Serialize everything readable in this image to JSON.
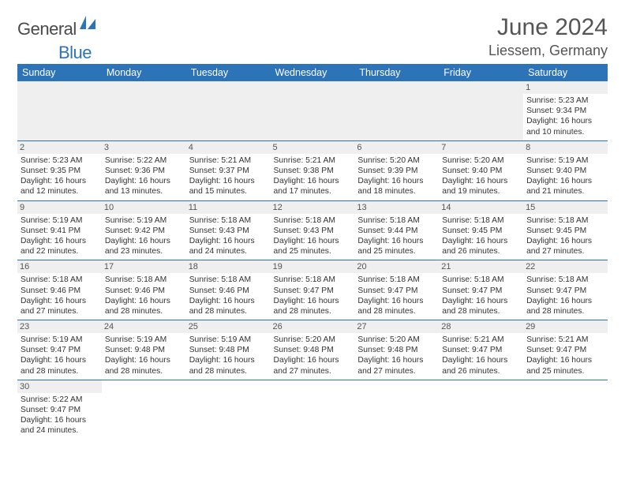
{
  "logo": {
    "part1": "General",
    "part2": "Blue",
    "shape_color": "#2d73b8"
  },
  "title": "June 2024",
  "location": "Liessem, Germany",
  "colors": {
    "header_bg": "#2d73b8",
    "header_fg": "#ffffff",
    "daynum_bg": "#efefef",
    "rule": "#2d73b8",
    "text": "#333333"
  },
  "weekdays": [
    "Sunday",
    "Monday",
    "Tuesday",
    "Wednesday",
    "Thursday",
    "Friday",
    "Saturday"
  ],
  "weeks": [
    [
      null,
      null,
      null,
      null,
      null,
      null,
      {
        "n": "1",
        "sr": "5:23 AM",
        "ss": "9:34 PM",
        "dl": "16 hours and 10 minutes."
      }
    ],
    [
      {
        "n": "2",
        "sr": "5:23 AM",
        "ss": "9:35 PM",
        "dl": "16 hours and 12 minutes."
      },
      {
        "n": "3",
        "sr": "5:22 AM",
        "ss": "9:36 PM",
        "dl": "16 hours and 13 minutes."
      },
      {
        "n": "4",
        "sr": "5:21 AM",
        "ss": "9:37 PM",
        "dl": "16 hours and 15 minutes."
      },
      {
        "n": "5",
        "sr": "5:21 AM",
        "ss": "9:38 PM",
        "dl": "16 hours and 17 minutes."
      },
      {
        "n": "6",
        "sr": "5:20 AM",
        "ss": "9:39 PM",
        "dl": "16 hours and 18 minutes."
      },
      {
        "n": "7",
        "sr": "5:20 AM",
        "ss": "9:40 PM",
        "dl": "16 hours and 19 minutes."
      },
      {
        "n": "8",
        "sr": "5:19 AM",
        "ss": "9:40 PM",
        "dl": "16 hours and 21 minutes."
      }
    ],
    [
      {
        "n": "9",
        "sr": "5:19 AM",
        "ss": "9:41 PM",
        "dl": "16 hours and 22 minutes."
      },
      {
        "n": "10",
        "sr": "5:19 AM",
        "ss": "9:42 PM",
        "dl": "16 hours and 23 minutes."
      },
      {
        "n": "11",
        "sr": "5:18 AM",
        "ss": "9:43 PM",
        "dl": "16 hours and 24 minutes."
      },
      {
        "n": "12",
        "sr": "5:18 AM",
        "ss": "9:43 PM",
        "dl": "16 hours and 25 minutes."
      },
      {
        "n": "13",
        "sr": "5:18 AM",
        "ss": "9:44 PM",
        "dl": "16 hours and 25 minutes."
      },
      {
        "n": "14",
        "sr": "5:18 AM",
        "ss": "9:45 PM",
        "dl": "16 hours and 26 minutes."
      },
      {
        "n": "15",
        "sr": "5:18 AM",
        "ss": "9:45 PM",
        "dl": "16 hours and 27 minutes."
      }
    ],
    [
      {
        "n": "16",
        "sr": "5:18 AM",
        "ss": "9:46 PM",
        "dl": "16 hours and 27 minutes."
      },
      {
        "n": "17",
        "sr": "5:18 AM",
        "ss": "9:46 PM",
        "dl": "16 hours and 28 minutes."
      },
      {
        "n": "18",
        "sr": "5:18 AM",
        "ss": "9:46 PM",
        "dl": "16 hours and 28 minutes."
      },
      {
        "n": "19",
        "sr": "5:18 AM",
        "ss": "9:47 PM",
        "dl": "16 hours and 28 minutes."
      },
      {
        "n": "20",
        "sr": "5:18 AM",
        "ss": "9:47 PM",
        "dl": "16 hours and 28 minutes."
      },
      {
        "n": "21",
        "sr": "5:18 AM",
        "ss": "9:47 PM",
        "dl": "16 hours and 28 minutes."
      },
      {
        "n": "22",
        "sr": "5:18 AM",
        "ss": "9:47 PM",
        "dl": "16 hours and 28 minutes."
      }
    ],
    [
      {
        "n": "23",
        "sr": "5:19 AM",
        "ss": "9:47 PM",
        "dl": "16 hours and 28 minutes."
      },
      {
        "n": "24",
        "sr": "5:19 AM",
        "ss": "9:48 PM",
        "dl": "16 hours and 28 minutes."
      },
      {
        "n": "25",
        "sr": "5:19 AM",
        "ss": "9:48 PM",
        "dl": "16 hours and 28 minutes."
      },
      {
        "n": "26",
        "sr": "5:20 AM",
        "ss": "9:48 PM",
        "dl": "16 hours and 27 minutes."
      },
      {
        "n": "27",
        "sr": "5:20 AM",
        "ss": "9:48 PM",
        "dl": "16 hours and 27 minutes."
      },
      {
        "n": "28",
        "sr": "5:21 AM",
        "ss": "9:47 PM",
        "dl": "16 hours and 26 minutes."
      },
      {
        "n": "29",
        "sr": "5:21 AM",
        "ss": "9:47 PM",
        "dl": "16 hours and 25 minutes."
      }
    ],
    [
      {
        "n": "30",
        "sr": "5:22 AM",
        "ss": "9:47 PM",
        "dl": "16 hours and 24 minutes."
      },
      null,
      null,
      null,
      null,
      null,
      null
    ]
  ],
  "labels": {
    "sunrise": "Sunrise:",
    "sunset": "Sunset:",
    "daylight": "Daylight:"
  }
}
